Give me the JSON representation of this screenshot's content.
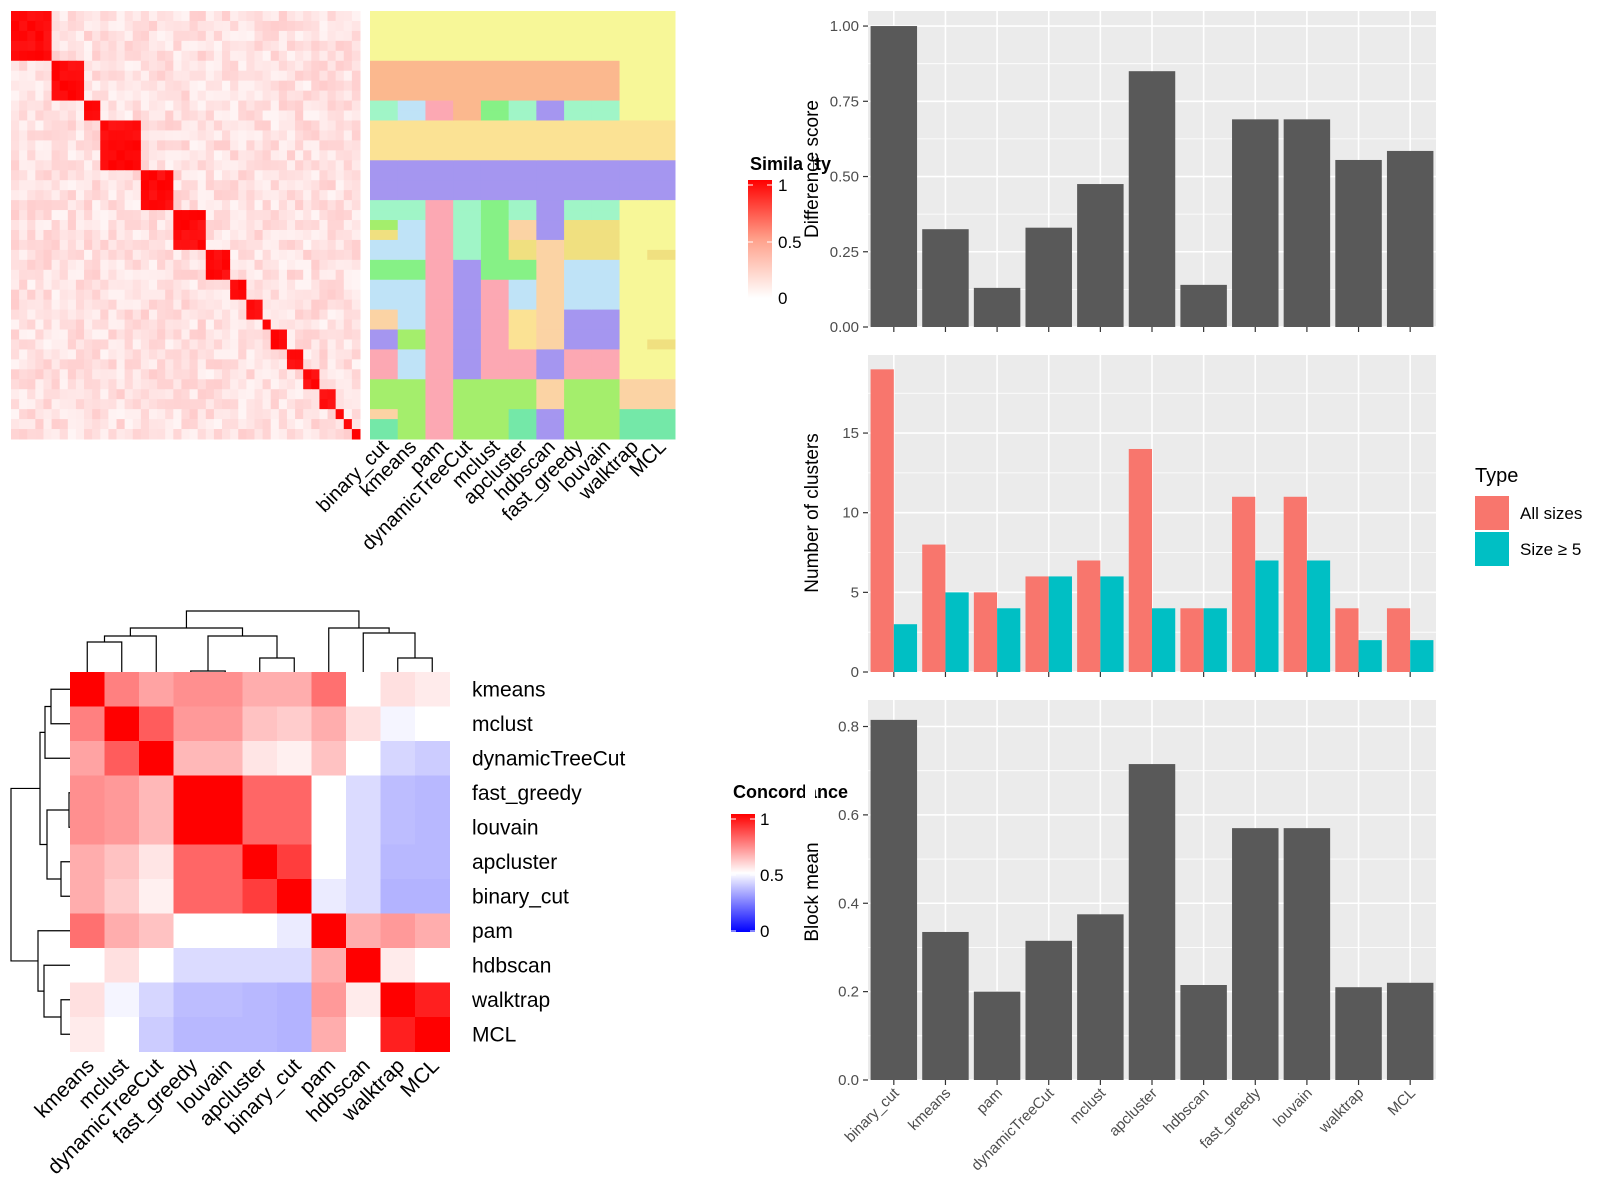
{
  "methods": [
    "binary_cut",
    "kmeans",
    "pam",
    "dynamicTreeCut",
    "mclust",
    "apcluster",
    "hdbscan",
    "fast_greedy",
    "louvain",
    "walktrap",
    "MCL"
  ],
  "colors": {
    "panel_bg": "#ebebeb",
    "grid": "#ffffff",
    "bar": "#595959",
    "all_sizes": "#f8766d",
    "size_ge5": "#00bfc4",
    "heat_high": "#ff0000",
    "heat_mid": "#ffffff",
    "heat_low": "#0000ff"
  },
  "chart_data": [
    {
      "type": "heatmap",
      "name": "similarity-heatmap",
      "n_terms": 43,
      "blocks": [
        5,
        4,
        2,
        5,
        4,
        4,
        3,
        2,
        2,
        1,
        2,
        2,
        2,
        2,
        1,
        1,
        3,
        1,
        1,
        1
      ],
      "legend": {
        "title": "Similarity",
        "ticks": [
          "1",
          "0.5",
          "0"
        ]
      },
      "column_labels": [
        "binary_cut",
        "kmeans",
        "pam",
        "dynamicTreeCut",
        "mclust",
        "apcluster",
        "hdbscan",
        "fast_greedy",
        "louvain",
        "walktrap",
        "MCL"
      ],
      "palette": [
        "#f7f798",
        "#fbb88e",
        "#a0f5c7",
        "#bfe3f7",
        "#fca8b3",
        "#86f186",
        "#a596f0",
        "#fbe294",
        "#f0e080",
        "#a4ee6c",
        "#fbd3a4",
        "#74e8a8"
      ],
      "membership_strips": [
        [
          0,
          0,
          0,
          0,
          0,
          1,
          1,
          1,
          1,
          2,
          2,
          7,
          7,
          7,
          7,
          6,
          6,
          6,
          6,
          2,
          2,
          9,
          8,
          3,
          3,
          5,
          5,
          3,
          3,
          3,
          10,
          10,
          6,
          6,
          4,
          4,
          4,
          9,
          9,
          9,
          10,
          11,
          11
        ],
        [
          0,
          0,
          0,
          0,
          0,
          1,
          1,
          1,
          1,
          3,
          3,
          7,
          7,
          7,
          7,
          6,
          6,
          6,
          6,
          2,
          2,
          3,
          3,
          3,
          3,
          5,
          5,
          3,
          3,
          3,
          3,
          3,
          9,
          9,
          3,
          3,
          3,
          9,
          9,
          9,
          9,
          9,
          9
        ],
        [
          0,
          0,
          0,
          0,
          0,
          1,
          1,
          1,
          1,
          4,
          4,
          7,
          7,
          7,
          7,
          6,
          6,
          6,
          6,
          4,
          4,
          4,
          4,
          4,
          4,
          4,
          4,
          4,
          4,
          4,
          4,
          4,
          4,
          4,
          4,
          4,
          4,
          4,
          4,
          4,
          4,
          4,
          4
        ],
        [
          0,
          0,
          0,
          0,
          0,
          1,
          1,
          1,
          1,
          1,
          1,
          7,
          7,
          7,
          7,
          6,
          6,
          6,
          6,
          2,
          2,
          2,
          2,
          2,
          2,
          6,
          6,
          6,
          6,
          6,
          6,
          6,
          6,
          6,
          6,
          6,
          6,
          9,
          9,
          9,
          9,
          9,
          9
        ],
        [
          0,
          0,
          0,
          0,
          0,
          1,
          1,
          1,
          1,
          5,
          5,
          7,
          7,
          7,
          7,
          6,
          6,
          6,
          6,
          5,
          5,
          5,
          5,
          5,
          5,
          5,
          5,
          4,
          4,
          4,
          4,
          4,
          4,
          4,
          4,
          4,
          4,
          9,
          9,
          9,
          9,
          9,
          9
        ],
        [
          0,
          0,
          0,
          0,
          0,
          1,
          1,
          1,
          1,
          2,
          2,
          7,
          7,
          7,
          7,
          6,
          6,
          6,
          6,
          2,
          2,
          10,
          10,
          8,
          8,
          5,
          5,
          3,
          3,
          3,
          7,
          7,
          7,
          7,
          4,
          4,
          4,
          9,
          9,
          9,
          11,
          11,
          11
        ],
        [
          0,
          0,
          0,
          0,
          0,
          1,
          1,
          1,
          1,
          6,
          6,
          7,
          7,
          7,
          7,
          6,
          6,
          6,
          6,
          6,
          6,
          6,
          6,
          10,
          10,
          10,
          10,
          10,
          10,
          10,
          10,
          10,
          10,
          10,
          6,
          6,
          6,
          10,
          10,
          10,
          6,
          6,
          6
        ],
        [
          0,
          0,
          0,
          0,
          0,
          1,
          1,
          1,
          1,
          2,
          2,
          7,
          7,
          7,
          7,
          6,
          6,
          6,
          6,
          2,
          2,
          8,
          8,
          8,
          8,
          3,
          3,
          3,
          3,
          3,
          6,
          6,
          6,
          6,
          4,
          4,
          4,
          9,
          9,
          9,
          9,
          9,
          9
        ],
        [
          0,
          0,
          0,
          0,
          0,
          1,
          1,
          1,
          1,
          2,
          2,
          7,
          7,
          7,
          7,
          6,
          6,
          6,
          6,
          2,
          2,
          8,
          8,
          8,
          8,
          3,
          3,
          3,
          3,
          3,
          6,
          6,
          6,
          6,
          4,
          4,
          4,
          9,
          9,
          9,
          9,
          9,
          9
        ],
        [
          0,
          0,
          0,
          0,
          0,
          0,
          0,
          0,
          0,
          0,
          0,
          7,
          7,
          7,
          7,
          6,
          6,
          6,
          6,
          0,
          0,
          0,
          0,
          0,
          0,
          0,
          0,
          0,
          0,
          0,
          0,
          0,
          0,
          0,
          0,
          0,
          0,
          10,
          10,
          10,
          11,
          11,
          11
        ],
        [
          0,
          0,
          0,
          0,
          0,
          0,
          0,
          0,
          0,
          0,
          0,
          7,
          7,
          7,
          7,
          6,
          6,
          6,
          6,
          0,
          0,
          0,
          0,
          0,
          8,
          0,
          0,
          0,
          0,
          0,
          0,
          0,
          0,
          8,
          0,
          0,
          0,
          10,
          10,
          10,
          11,
          11,
          11
        ]
      ]
    },
    {
      "type": "heatmap",
      "name": "concordance-heatmap",
      "labels": [
        "kmeans",
        "mclust",
        "dynamicTreeCut",
        "fast_greedy",
        "louvain",
        "apcluster",
        "binary_cut",
        "pam",
        "hdbscan",
        "walktrap",
        "MCL"
      ],
      "values": [
        [
          1.0,
          0.75,
          0.68,
          0.72,
          0.72,
          0.66,
          0.66,
          0.78,
          0.5,
          0.56,
          0.54
        ],
        [
          0.75,
          1.0,
          0.82,
          0.7,
          0.7,
          0.62,
          0.6,
          0.66,
          0.56,
          0.48,
          0.5
        ],
        [
          0.68,
          0.82,
          1.0,
          0.64,
          0.64,
          0.55,
          0.53,
          0.62,
          0.5,
          0.42,
          0.4
        ],
        [
          0.72,
          0.7,
          0.64,
          1.0,
          1.0,
          0.8,
          0.8,
          0.5,
          0.43,
          0.37,
          0.36
        ],
        [
          0.72,
          0.7,
          0.64,
          1.0,
          1.0,
          0.8,
          0.8,
          0.5,
          0.43,
          0.37,
          0.36
        ],
        [
          0.66,
          0.62,
          0.55,
          0.8,
          0.8,
          1.0,
          0.88,
          0.5,
          0.43,
          0.36,
          0.36
        ],
        [
          0.66,
          0.6,
          0.53,
          0.8,
          0.8,
          0.88,
          1.0,
          0.46,
          0.43,
          0.35,
          0.35
        ],
        [
          0.78,
          0.66,
          0.62,
          0.5,
          0.5,
          0.5,
          0.46,
          1.0,
          0.66,
          0.7,
          0.66
        ],
        [
          0.5,
          0.56,
          0.5,
          0.43,
          0.43,
          0.43,
          0.43,
          0.66,
          1.0,
          0.54,
          0.5
        ],
        [
          0.56,
          0.48,
          0.42,
          0.37,
          0.37,
          0.36,
          0.35,
          0.7,
          0.54,
          1.0,
          0.94
        ],
        [
          0.54,
          0.5,
          0.4,
          0.36,
          0.36,
          0.36,
          0.35,
          0.66,
          0.5,
          0.94,
          1.0
        ]
      ],
      "legend": {
        "title": "Concordance",
        "ticks": [
          "1",
          "0.5",
          "0"
        ]
      }
    },
    {
      "type": "bar",
      "name": "difference-score",
      "categories": [
        "binary_cut",
        "kmeans",
        "pam",
        "dynamicTreeCut",
        "mclust",
        "apcluster",
        "hdbscan",
        "fast_greedy",
        "louvain",
        "walktrap",
        "MCL"
      ],
      "values": [
        1.0,
        0.325,
        0.13,
        0.33,
        0.475,
        0.85,
        0.14,
        0.69,
        0.69,
        0.555,
        0.585
      ],
      "ylabel": "Difference score",
      "ylim": [
        0,
        1.05
      ],
      "yticks": [
        0,
        0.25,
        0.5,
        0.75,
        1.0
      ],
      "ytick_labels": [
        "0.00",
        "0.25",
        "0.50",
        "0.75",
        "1.00"
      ],
      "grid": true
    },
    {
      "type": "bar",
      "name": "number-of-clusters",
      "categories": [
        "binary_cut",
        "kmeans",
        "pam",
        "dynamicTreeCut",
        "mclust",
        "apcluster",
        "hdbscan",
        "fast_greedy",
        "louvain",
        "walktrap",
        "MCL"
      ],
      "series": [
        {
          "name": "All sizes",
          "values": [
            19,
            8,
            5,
            6,
            7,
            14,
            4,
            11,
            11,
            4,
            4
          ]
        },
        {
          "name": "Size ≥ 5",
          "values": [
            3,
            5,
            4,
            6,
            6,
            4,
            4,
            7,
            7,
            2,
            2
          ]
        }
      ],
      "ylabel": "Number of clusters",
      "ylim": [
        0,
        19.9
      ],
      "yticks": [
        0,
        5,
        10,
        15
      ],
      "ytick_labels": [
        "0",
        "5",
        "10",
        "15"
      ],
      "legend": {
        "title": "Type",
        "position": "right"
      },
      "grid": true
    },
    {
      "type": "bar",
      "name": "block-mean",
      "categories": [
        "binary_cut",
        "kmeans",
        "pam",
        "dynamicTreeCut",
        "mclust",
        "apcluster",
        "hdbscan",
        "fast_greedy",
        "louvain",
        "walktrap",
        "MCL"
      ],
      "values": [
        0.815,
        0.335,
        0.2,
        0.315,
        0.375,
        0.715,
        0.215,
        0.57,
        0.57,
        0.21,
        0.22
      ],
      "ylabel": "Block mean",
      "ylim": [
        0,
        0.86
      ],
      "yticks": [
        0,
        0.2,
        0.4,
        0.6,
        0.8
      ],
      "ytick_labels": [
        "0.0",
        "0.2",
        "0.4",
        "0.6",
        "0.8"
      ],
      "grid": true
    }
  ]
}
